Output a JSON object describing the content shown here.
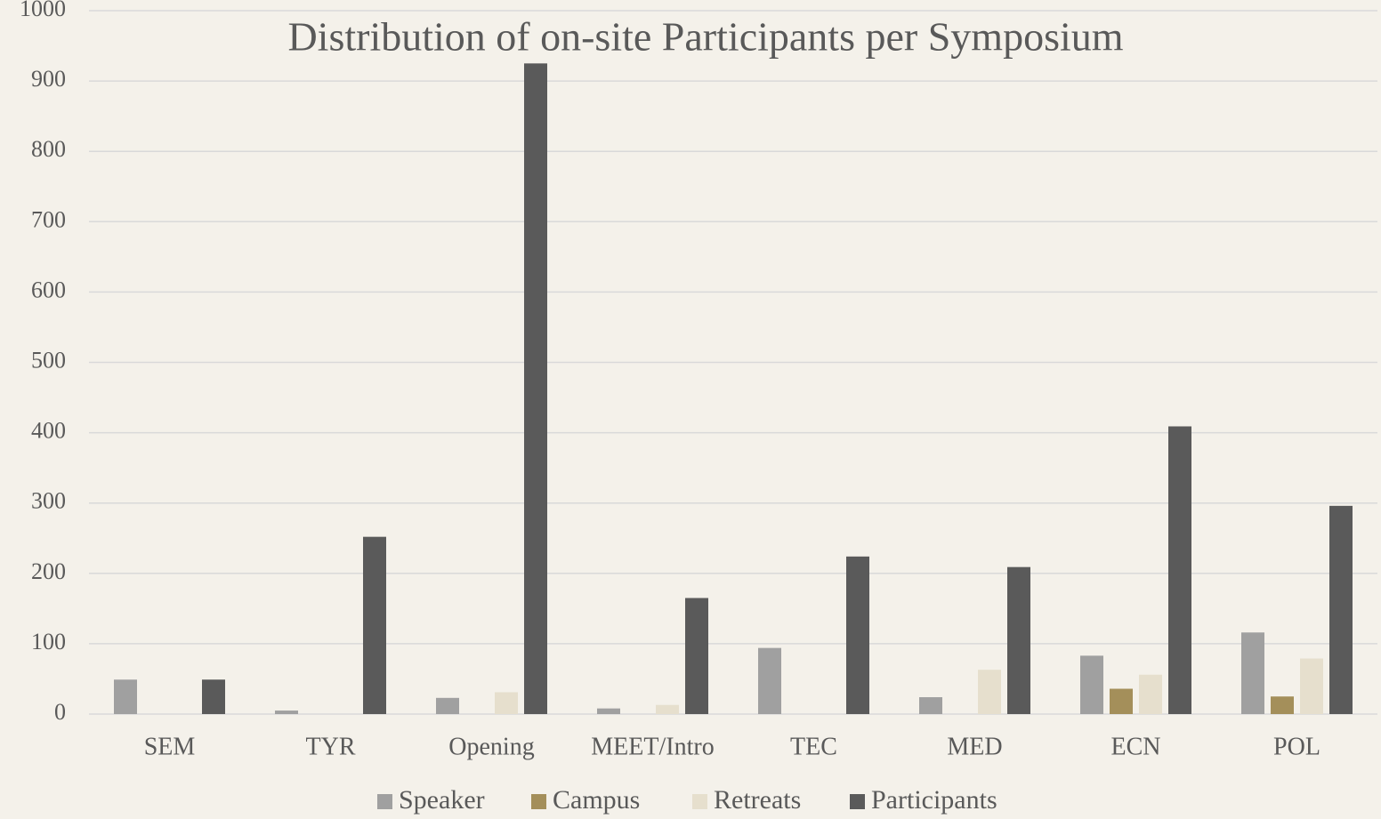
{
  "chart_data": {
    "type": "bar",
    "title": "Distribution of on-site Participants per Symposium",
    "categories": [
      "SEM",
      "TYR",
      "Opening",
      "MEET/Intro",
      "TEC",
      "MED",
      "ECN",
      "POL"
    ],
    "series": [
      {
        "name": "Speaker",
        "color": "#a0a0a0",
        "values": [
          49,
          5,
          23,
          8,
          94,
          24,
          83,
          116
        ]
      },
      {
        "name": "Campus",
        "color": "#a48f5a",
        "values": [
          0,
          0,
          0,
          0,
          0,
          0,
          36,
          25
        ]
      },
      {
        "name": "Retreats",
        "color": "#e6dfcd",
        "values": [
          0,
          0,
          31,
          13,
          0,
          63,
          56,
          79
        ]
      },
      {
        "name": "Participants",
        "color": "#5a5a5a",
        "values": [
          49,
          252,
          925,
          165,
          224,
          209,
          409,
          296
        ]
      }
    ],
    "ylim": [
      0,
      1000
    ],
    "yticks": [
      0,
      100,
      200,
      300,
      400,
      500,
      600,
      700,
      800,
      900,
      1000
    ],
    "grid": true,
    "legend": "bottom"
  }
}
